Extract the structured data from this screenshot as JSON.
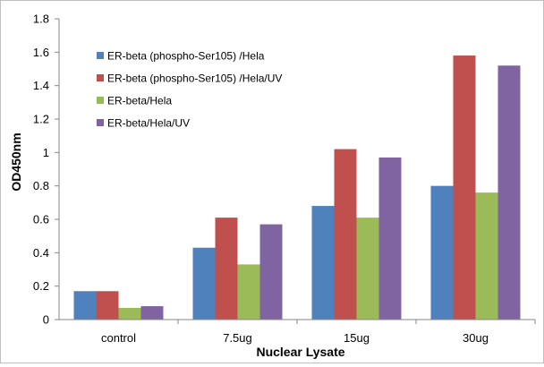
{
  "chart_data": {
    "type": "bar",
    "xlabel": "Nuclear Lysate",
    "ylabel": "OD450nm",
    "ylim": [
      0,
      1.8
    ],
    "yticks": [
      "0",
      "0.2",
      "0.4",
      "0.6",
      "0.8",
      "1",
      "1.2",
      "1.4",
      "1.6",
      "1.8"
    ],
    "grid": false,
    "legend_position": "top-left",
    "categories": [
      "control",
      "7.5ug",
      "15ug",
      "30ug"
    ],
    "series": [
      {
        "name": "ER-beta (phospho-Ser105) /Hela",
        "color": "#4F81BD",
        "values": [
          0.17,
          0.43,
          0.68,
          0.8
        ]
      },
      {
        "name": "ER-beta (phospho-Ser105) /Hela/UV",
        "color": "#C0504D",
        "values": [
          0.17,
          0.61,
          1.02,
          1.58
        ]
      },
      {
        "name": "ER-beta/Hela",
        "color": "#9BBB59",
        "values": [
          0.07,
          0.33,
          0.61,
          0.76
        ]
      },
      {
        "name": "ER-beta/Hela/UV",
        "color": "#8064A2",
        "values": [
          0.08,
          0.57,
          0.97,
          1.52
        ]
      }
    ]
  }
}
